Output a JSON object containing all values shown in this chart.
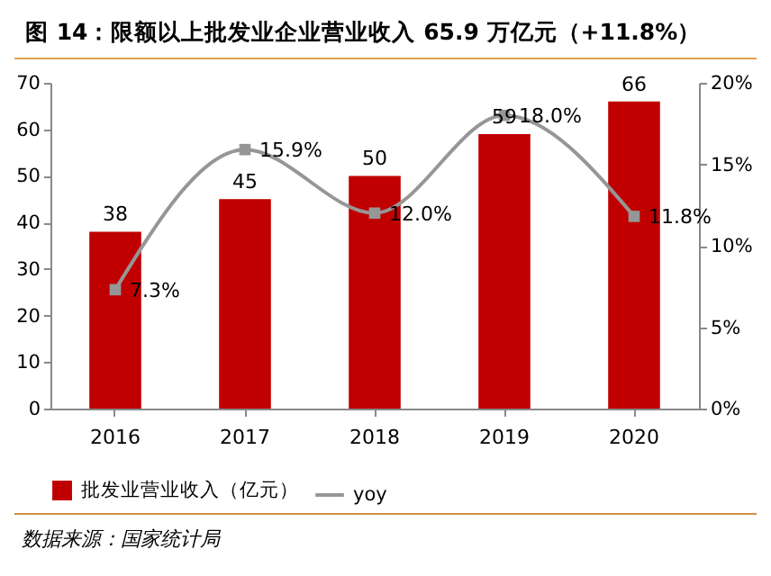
{
  "chart_data": {
    "type": "bar",
    "title": "图 14：限额以上批发业企业营业收入 65.9 万亿元（+11.8%）",
    "annotations": [
      "数据来源：国家统计局"
    ],
    "categories": [
      "2016",
      "2017",
      "2018",
      "2019",
      "2020"
    ],
    "series": [
      {
        "name": "批发业营业收入（亿元）",
        "color": "#c00000",
        "values": [
          38,
          45,
          50,
          59,
          66
        ]
      },
      {
        "name": "yoy",
        "type": "line",
        "axis": "y2",
        "color": "#969696",
        "marker": "square",
        "values": [
          7.3,
          15.9,
          12.0,
          18.0,
          11.8
        ],
        "value_labels": [
          "7.3%",
          "15.9%",
          "12.0%",
          "18.0%",
          "11.8%"
        ]
      }
    ],
    "data_labels": true,
    "ylim": [
      0,
      70
    ],
    "yticks": [
      0,
      10,
      20,
      30,
      40,
      50,
      60,
      70
    ],
    "y2lim": [
      0,
      20
    ],
    "y2ticks": [
      {
        "value": 0,
        "label": "0%"
      },
      {
        "value": 5,
        "label": "5%"
      },
      {
        "value": 10,
        "label": "10%"
      },
      {
        "value": 15,
        "label": "15%"
      },
      {
        "value": 20,
        "label": "20%"
      }
    ],
    "grid": false,
    "legend": "bottom"
  }
}
